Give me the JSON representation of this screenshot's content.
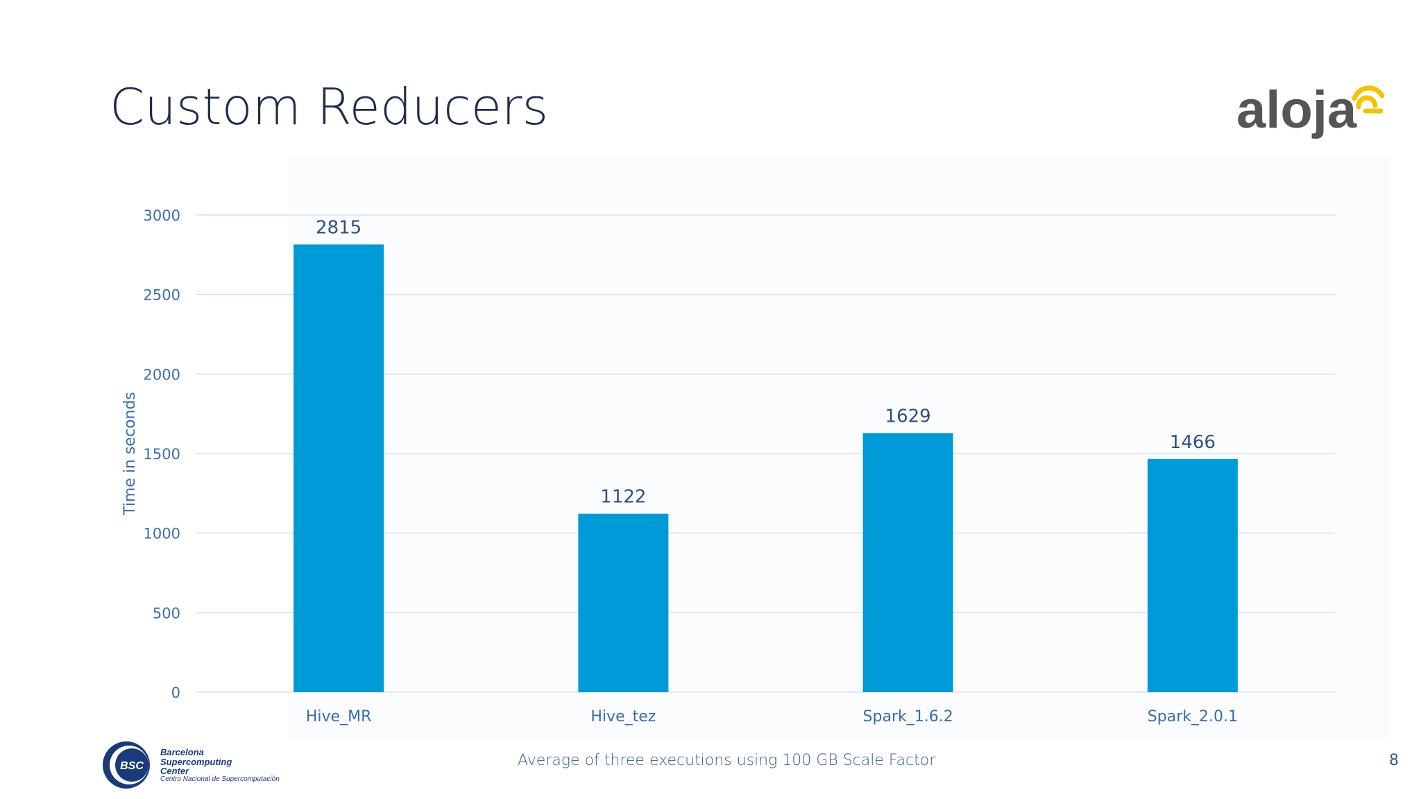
{
  "slide": {
    "title": "Custom Reducers",
    "footer_note": "Average of three executions using 100 GB Scale Factor",
    "page_number": "8"
  },
  "brand": {
    "logo_text": "aloja",
    "bsc_abbrev": "BSC",
    "bsc_line1": "Barcelona",
    "bsc_line2": "Supercomputing",
    "bsc_line3": "Center",
    "bsc_line4": "Centro Nacional de Supercomputación"
  },
  "colors": {
    "bar": "#009ad9",
    "title": "#1f2d4d",
    "axis_text": "#3a6bb0",
    "grid": "#d6e0ee",
    "logo_gray": "#555555",
    "logo_yellow": "#f2c300",
    "bsc_blue": "#1b3a7a"
  },
  "chart_data": {
    "type": "bar",
    "title": "",
    "categories": [
      "Hive_MR",
      "Hive_tez",
      "Spark_1.6.2",
      "Spark_2.0.1"
    ],
    "values": [
      2815,
      1122,
      1629,
      1466
    ],
    "value_labels": [
      "2815",
      "1122",
      "1629",
      "1466"
    ],
    "xlabel": "",
    "ylabel": "Time in seconds",
    "ylim": [
      0,
      3000
    ],
    "yticks": [
      0,
      500,
      1000,
      1500,
      2000,
      2500,
      3000
    ],
    "ytick_labels": [
      "0",
      "500",
      "1000",
      "1500",
      "2000",
      "2500",
      "3000"
    ],
    "grid": true,
    "legend": "none"
  }
}
